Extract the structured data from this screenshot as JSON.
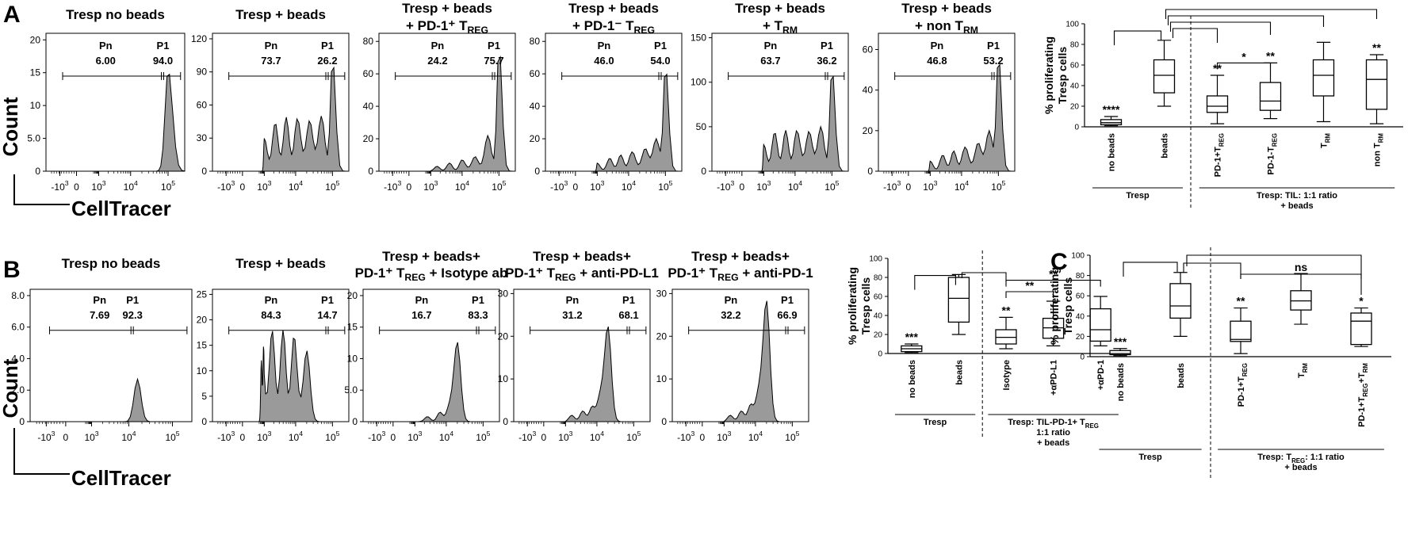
{
  "panel_letters": [
    "A",
    "B",
    "C"
  ],
  "axis_labels": {
    "count": "Count",
    "celltracer": "CellTracer"
  },
  "gate_labels": {
    "pn": "Pn",
    "p1": "P1"
  },
  "x_axis": {
    "scale": "biexponential",
    "ticks": [
      "-10^3",
      "0",
      "10^3",
      "10^4",
      "10^5"
    ]
  },
  "chart_data": [
    {
      "type": "area",
      "panel": "A",
      "title": [
        "Tresp no beads"
      ],
      "y_ticks": [
        "0",
        "5.0",
        "10",
        "15",
        "20"
      ],
      "ylim": [
        0,
        21
      ],
      "gates": {
        "pn": "6.00",
        "p1": "94.0"
      },
      "peaks": [
        {
          "x": 5.0,
          "h": 15.5
        }
      ]
    },
    {
      "type": "area",
      "panel": "A",
      "title": [
        "Tresp + beads"
      ],
      "y_ticks": [
        "0",
        "30",
        "60",
        "90",
        "120"
      ],
      "ylim": [
        0,
        125
      ],
      "gates": {
        "pn": "73.7",
        "p1": "26.2"
      },
      "peaks": [
        {
          "x": 3.0,
          "h": 30
        },
        {
          "x": 3.35,
          "h": 44
        },
        {
          "x": 3.7,
          "h": 49
        },
        {
          "x": 4.05,
          "h": 48
        },
        {
          "x": 4.38,
          "h": 46
        },
        {
          "x": 4.7,
          "h": 50
        },
        {
          "x": 5.0,
          "h": 104
        }
      ]
    },
    {
      "type": "area",
      "panel": "A",
      "title": [
        "Tresp + beads",
        "+ PD-1⁺ T_REG"
      ],
      "y_ticks": [
        "0",
        "20",
        "40",
        "60",
        "80"
      ],
      "ylim": [
        0,
        85
      ],
      "gates": {
        "pn": "24.2",
        "p1": "75.7"
      },
      "peaks": [
        {
          "x": 3.2,
          "h": 3
        },
        {
          "x": 3.6,
          "h": 5
        },
        {
          "x": 4.0,
          "h": 7
        },
        {
          "x": 4.35,
          "h": 9
        },
        {
          "x": 4.7,
          "h": 22
        },
        {
          "x": 5.0,
          "h": 78
        }
      ]
    },
    {
      "type": "area",
      "panel": "A",
      "title": [
        "Tresp + beads",
        "+ PD-1⁻ T_REG"
      ],
      "y_ticks": [
        "0",
        "20",
        "40",
        "60",
        "80"
      ],
      "ylim": [
        0,
        85
      ],
      "gates": {
        "pn": "46.0",
        "p1": "54.0"
      },
      "peaks": [
        {
          "x": 3.0,
          "h": 5
        },
        {
          "x": 3.4,
          "h": 8
        },
        {
          "x": 3.75,
          "h": 10
        },
        {
          "x": 4.1,
          "h": 12
        },
        {
          "x": 4.45,
          "h": 14
        },
        {
          "x": 4.75,
          "h": 20
        },
        {
          "x": 5.0,
          "h": 66
        }
      ]
    },
    {
      "type": "area",
      "panel": "A",
      "title": [
        "Tresp + beads",
        "+ T_RM"
      ],
      "y_ticks": [
        "0",
        "50",
        "100",
        "150"
      ],
      "ylim": [
        0,
        155
      ],
      "gates": {
        "pn": "63.7",
        "p1": "36.2"
      },
      "peaks": [
        {
          "x": 3.0,
          "h": 30
        },
        {
          "x": 3.35,
          "h": 44
        },
        {
          "x": 3.7,
          "h": 46
        },
        {
          "x": 4.05,
          "h": 46
        },
        {
          "x": 4.38,
          "h": 45
        },
        {
          "x": 4.7,
          "h": 50
        },
        {
          "x": 5.0,
          "h": 118
        }
      ]
    },
    {
      "type": "area",
      "panel": "A",
      "title": [
        "Tresp + beads",
        "+ non T_RM"
      ],
      "y_ticks": [
        "0",
        "20",
        "40",
        "60"
      ],
      "ylim": [
        0,
        68
      ],
      "gates": {
        "pn": "46.8",
        "p1": "53.2"
      },
      "peaks": [
        {
          "x": 3.0,
          "h": 5
        },
        {
          "x": 3.4,
          "h": 8
        },
        {
          "x": 3.75,
          "h": 10
        },
        {
          "x": 4.1,
          "h": 12
        },
        {
          "x": 4.45,
          "h": 14
        },
        {
          "x": 4.75,
          "h": 20
        },
        {
          "x": 5.0,
          "h": 58
        }
      ]
    },
    {
      "type": "area",
      "panel": "B",
      "title": [
        "Tresp no beads"
      ],
      "y_ticks": [
        "0",
        "2.0",
        "4.0",
        "6.0",
        "8.0"
      ],
      "ylim": [
        0,
        8.4
      ],
      "gates": {
        "pn": "7.69",
        "p1": "92.3"
      },
      "peaks": [
        {
          "x": 4.2,
          "h": 2.7
        }
      ]
    },
    {
      "type": "area",
      "panel": "B",
      "title": [
        "Tresp + beads"
      ],
      "y_ticks": [
        "0",
        "5",
        "10",
        "15",
        "20",
        "25"
      ],
      "ylim": [
        0,
        26
      ],
      "gates": {
        "pn": "84.3",
        "p1": "14.7"
      },
      "peaks": [
        {
          "x": 2.6,
          "h": 12
        },
        {
          "x": 2.9,
          "h": 15
        },
        {
          "x": 3.25,
          "h": 18
        },
        {
          "x": 3.6,
          "h": 18
        },
        {
          "x": 3.95,
          "h": 17
        },
        {
          "x": 4.3,
          "h": 14
        }
      ]
    },
    {
      "type": "area",
      "panel": "B",
      "title": [
        "Tresp + beads+",
        "PD-1⁺ T_REG + Isotype ab"
      ],
      "y_ticks": [
        "0",
        "5.0",
        "10",
        "15",
        "20"
      ],
      "ylim": [
        0,
        21
      ],
      "gates": {
        "pn": "16.7",
        "p1": "83.3"
      },
      "peaks": [
        {
          "x": 3.4,
          "h": 0.8
        },
        {
          "x": 3.8,
          "h": 1.5
        },
        {
          "x": 4.1,
          "h": 2.5
        },
        {
          "x": 4.3,
          "h": 12.5
        }
      ]
    },
    {
      "type": "area",
      "panel": "B",
      "title": [
        "Tresp + beads+",
        "PD-1⁺ T_REG + anti-PD-L1"
      ],
      "y_ticks": [
        "0",
        "10",
        "20",
        "30"
      ],
      "ylim": [
        0,
        31
      ],
      "gates": {
        "pn": "31.2",
        "p1": "68.1"
      },
      "peaks": [
        {
          "x": 3.2,
          "h": 1.5
        },
        {
          "x": 3.55,
          "h": 2.5
        },
        {
          "x": 3.85,
          "h": 3.5
        },
        {
          "x": 4.1,
          "h": 6
        },
        {
          "x": 4.3,
          "h": 22
        }
      ]
    },
    {
      "type": "area",
      "panel": "B",
      "title": [
        "Tresp + beads+",
        "PD-1⁺ T_REG + anti-PD-1"
      ],
      "y_ticks": [
        "0",
        "10",
        "20",
        "30"
      ],
      "ylim": [
        0,
        31
      ],
      "gates": {
        "pn": "32.2",
        "p1": "66.9"
      },
      "peaks": [
        {
          "x": 3.2,
          "h": 1.5
        },
        {
          "x": 3.55,
          "h": 2.5
        },
        {
          "x": 3.85,
          "h": 4
        },
        {
          "x": 4.1,
          "h": 7
        },
        {
          "x": 4.3,
          "h": 28
        }
      ]
    },
    {
      "type": "boxplot",
      "panel": "A",
      "ylabel": [
        "% proliferating",
        "Tresp cells"
      ],
      "y_ticks": [
        0,
        20,
        40,
        60,
        80,
        100
      ],
      "ylim": [
        0,
        100
      ],
      "categories": [
        "no beads",
        "beads",
        "PD-1+T_REG",
        "PD-1-T_REG",
        "T_RM",
        "non T_RM"
      ],
      "boxes": [
        {
          "min": 1,
          "q1": 2,
          "median": 4,
          "q3": 7,
          "max": 10
        },
        {
          "min": 20,
          "q1": 33,
          "median": 50,
          "q3": 65,
          "max": 84
        },
        {
          "min": 3,
          "q1": 14,
          "median": 20,
          "q3": 30,
          "max": 50
        },
        {
          "min": 8,
          "q1": 16,
          "median": 25,
          "q3": 43,
          "max": 62
        },
        {
          "min": 5,
          "q1": 30,
          "median": 50,
          "q3": 65,
          "max": 82
        },
        {
          "min": 3,
          "q1": 17,
          "median": 46,
          "q3": 65,
          "max": 70
        }
      ],
      "significance": [
        "****",
        "",
        "**",
        "**",
        "",
        "**"
      ],
      "extra_sig": "*",
      "groups": [
        "Tresp",
        "Tresp: TIL: 1:1 ratio",
        "+ beads"
      ]
    },
    {
      "type": "boxplot",
      "panel": "B",
      "ylabel": [
        "% proliferating",
        "Tresp cells"
      ],
      "y_ticks": [
        0,
        20,
        40,
        60,
        80,
        100
      ],
      "ylim": [
        0,
        100
      ],
      "categories": [
        "no beads",
        "beads",
        "Isotype",
        "+αPD-L1",
        "+αPD-1"
      ],
      "boxes": [
        {
          "min": 1,
          "q1": 2,
          "median": 5,
          "q3": 8,
          "max": 10
        },
        {
          "min": 20,
          "q1": 33,
          "median": 58,
          "q3": 80,
          "max": 83
        },
        {
          "min": 5,
          "q1": 10,
          "median": 17,
          "q3": 25,
          "max": 38
        },
        {
          "min": 8,
          "q1": 16,
          "median": 27,
          "q3": 37,
          "max": 55
        },
        {
          "min": 8,
          "q1": 13,
          "median": 25,
          "q3": 47,
          "max": 60
        }
      ],
      "significance": [
        "***",
        "",
        "**",
        "",
        ""
      ],
      "brackets": [
        "**",
        "**"
      ],
      "groups": [
        "Tresp",
        "Tresp: TIL-PD-1+ T_REG",
        "1:1 ratio",
        "+ beads"
      ]
    },
    {
      "type": "boxplot",
      "panel": "C",
      "ylabel": [
        "% proliferating",
        "Tresp cells"
      ],
      "y_ticks": [
        0,
        20,
        40,
        60,
        80,
        100
      ],
      "ylim": [
        0,
        100
      ],
      "categories": [
        "no beads",
        "beads",
        "PD-1+T_REG",
        "T_RM",
        "PD-1+T_REG+T_RM"
      ],
      "boxes": [
        {
          "min": 1,
          "q1": 2,
          "median": 3,
          "q3": 6,
          "max": 8
        },
        {
          "min": 20,
          "q1": 38,
          "median": 50,
          "q3": 72,
          "max": 83
        },
        {
          "min": 3,
          "q1": 15,
          "median": 17,
          "q3": 35,
          "max": 48
        },
        {
          "min": 32,
          "q1": 46,
          "median": 55,
          "q3": 65,
          "max": 82
        },
        {
          "min": 10,
          "q1": 12,
          "median": 35,
          "q3": 43,
          "max": 48
        }
      ],
      "significance": [
        "***",
        "",
        "**",
        "",
        "*"
      ],
      "bracket": "ns",
      "groups": [
        "Tresp",
        "Tresp: T_REG: 1:1 ratio",
        "+ beads"
      ]
    }
  ]
}
